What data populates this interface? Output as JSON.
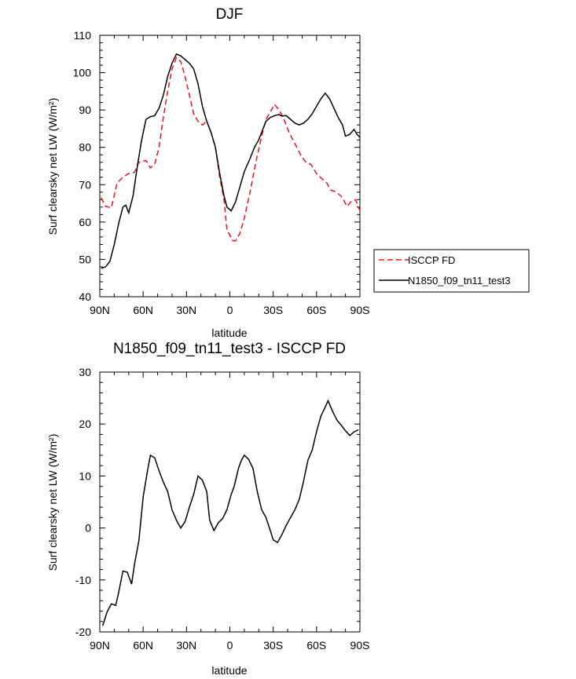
{
  "chart_data": [
    {
      "type": "line",
      "title": "DJF",
      "xlabel": "latitude",
      "ylabel": "Surf clearsky net LW (W/m²)",
      "xlim": [
        90,
        -90
      ],
      "ylim": [
        40,
        110
      ],
      "xticks": [
        90,
        60,
        30,
        0,
        -30,
        -60,
        -90
      ],
      "xtick_labels": [
        "90N",
        "60N",
        "30N",
        "0",
        "30S",
        "60S",
        "90S"
      ],
      "yticks": [
        40,
        50,
        60,
        70,
        80,
        90,
        100,
        110
      ],
      "ytick_labels": [
        "40",
        "50",
        "60",
        "70",
        "80",
        "90",
        "100",
        "110"
      ],
      "legend_position": "right",
      "series": [
        {
          "name": "ISCCP FD",
          "color": "#e8141e",
          "dash": "dashed",
          "points": [
            [
              89,
              66.5
            ],
            [
              86,
              64.2
            ],
            [
              82,
              63.8
            ],
            [
              78,
              70.5
            ],
            [
              74,
              72
            ],
            [
              70,
              73
            ],
            [
              66,
              73.3
            ],
            [
              63,
              76
            ],
            [
              58,
              76.5
            ],
            [
              55,
              74.5
            ],
            [
              52,
              75.5
            ],
            [
              49,
              80
            ],
            [
              46,
              88
            ],
            [
              43,
              95
            ],
            [
              40,
              101
            ],
            [
              37,
              104
            ],
            [
              34,
              103
            ],
            [
              31,
              99
            ],
            [
              28,
              94
            ],
            [
              25,
              89
            ],
            [
              22,
              87
            ],
            [
              19,
              86
            ],
            [
              16,
              87
            ],
            [
              13,
              84
            ],
            [
              10,
              80
            ],
            [
              7,
              72
            ],
            [
              4,
              66
            ],
            [
              2,
              58
            ],
            [
              -2,
              55
            ],
            [
              -4,
              55
            ],
            [
              -7,
              57
            ],
            [
              -10,
              61
            ],
            [
              -14,
              68
            ],
            [
              -18,
              76
            ],
            [
              -22,
              83
            ],
            [
              -25,
              87.5
            ],
            [
              -28,
              89.5
            ],
            [
              -31,
              91.5
            ],
            [
              -34,
              90
            ],
            [
              -37,
              88
            ],
            [
              -41,
              84
            ],
            [
              -45,
              81
            ],
            [
              -49,
              78
            ],
            [
              -53,
              75.8
            ],
            [
              -56,
              75.5
            ],
            [
              -60,
              73
            ],
            [
              -64,
              71.5
            ],
            [
              -67,
              70.5
            ],
            [
              -70,
              68.5
            ],
            [
              -74,
              68
            ],
            [
              -78,
              66.5
            ],
            [
              -81,
              64.2
            ],
            [
              -84,
              65.5
            ],
            [
              -87,
              66
            ],
            [
              -90,
              63
            ]
          ]
        },
        {
          "name": "N1850_f09_tn11_test3",
          "color": "#000000",
          "dash": "solid",
          "points": [
            [
              89,
              47.6
            ],
            [
              86,
              48
            ],
            [
              83,
              49.5
            ],
            [
              80,
              54
            ],
            [
              77,
              59.5
            ],
            [
              74,
              64
            ],
            [
              72,
              64.5
            ],
            [
              70,
              62.5
            ],
            [
              67,
              67
            ],
            [
              64,
              75
            ],
            [
              61,
              82
            ],
            [
              58,
              87.5
            ],
            [
              55,
              88.2
            ],
            [
              52,
              88.5
            ],
            [
              49,
              90.5
            ],
            [
              46,
              94
            ],
            [
              43,
              99
            ],
            [
              40,
              102.5
            ],
            [
              37,
              105
            ],
            [
              34,
              104.5
            ],
            [
              31,
              103.5
            ],
            [
              28,
              102.5
            ],
            [
              25,
              101
            ],
            [
              22,
              97
            ],
            [
              19,
              91
            ],
            [
              16,
              87
            ],
            [
              13,
              84
            ],
            [
              10,
              80
            ],
            [
              7,
              73
            ],
            [
              4,
              67
            ],
            [
              2,
              64
            ],
            [
              -1,
              63
            ],
            [
              -4,
              65.5
            ],
            [
              -7,
              69.5
            ],
            [
              -10,
              73.5
            ],
            [
              -14,
              77
            ],
            [
              -17,
              80
            ],
            [
              -20,
              82
            ],
            [
              -23,
              85
            ],
            [
              -25,
              87
            ],
            [
              -28,
              88
            ],
            [
              -31,
              88.5
            ],
            [
              -34,
              88.8
            ],
            [
              -36,
              88.4
            ],
            [
              -39,
              88.5
            ],
            [
              -42,
              87.5
            ],
            [
              -45,
              86.5
            ],
            [
              -48,
              86
            ],
            [
              -51,
              86.5
            ],
            [
              -54,
              87.5
            ],
            [
              -57,
              89
            ],
            [
              -60,
              91
            ],
            [
              -63,
              93
            ],
            [
              -66,
              94.5
            ],
            [
              -69,
              93
            ],
            [
              -72,
              90.5
            ],
            [
              -75,
              88
            ],
            [
              -78,
              86
            ],
            [
              -80,
              83
            ],
            [
              -83,
              83.5
            ],
            [
              -86,
              84.8
            ],
            [
              -88,
              83.5
            ],
            [
              -90,
              82.7
            ]
          ]
        }
      ]
    },
    {
      "type": "line",
      "title": "N1850_f09_tn11_test3 - ISCCP FD",
      "xlabel": "latitude",
      "ylabel": "Surf clearsky net LW (W/m²)",
      "xlim": [
        90,
        -90
      ],
      "ylim": [
        -20,
        30
      ],
      "xticks": [
        90,
        60,
        30,
        0,
        -30,
        -60,
        -90
      ],
      "xtick_labels": [
        "90N",
        "60N",
        "30N",
        "0",
        "30S",
        "60S",
        "90S"
      ],
      "yticks": [
        -20,
        -10,
        0,
        10,
        20,
        30
      ],
      "ytick_labels": [
        "-20",
        "-10",
        "0",
        "10",
        "20",
        "30"
      ],
      "series": [
        {
          "color": "#000000",
          "dash": "solid",
          "points": [
            [
              88,
              -18.8
            ],
            [
              85,
              -16.2
            ],
            [
              82,
              -14.6
            ],
            [
              79,
              -14.9
            ],
            [
              77,
              -12.5
            ],
            [
              74,
              -8.3
            ],
            [
              71,
              -8.5
            ],
            [
              68,
              -10.8
            ],
            [
              66,
              -7
            ],
            [
              63,
              -2.5
            ],
            [
              60,
              6
            ],
            [
              57,
              11
            ],
            [
              55,
              14
            ],
            [
              52,
              13.5
            ],
            [
              49,
              11
            ],
            [
              46,
              8.8
            ],
            [
              43,
              7
            ],
            [
              40,
              3.5
            ],
            [
              37,
              1.5
            ],
            [
              34,
              0
            ],
            [
              31,
              1.2
            ],
            [
              28,
              4
            ],
            [
              25,
              6.5
            ],
            [
              22,
              10
            ],
            [
              19,
              9.2
            ],
            [
              16,
              7
            ],
            [
              14,
              1.5
            ],
            [
              11,
              -0.5
            ],
            [
              8,
              1
            ],
            [
              5,
              1.8
            ],
            [
              2,
              3.5
            ],
            [
              -1,
              6.5
            ],
            [
              -3,
              8
            ],
            [
              -6,
              11.5
            ],
            [
              -8,
              13
            ],
            [
              -10,
              14
            ],
            [
              -13,
              13.2
            ],
            [
              -16,
              11.5
            ],
            [
              -19,
              7
            ],
            [
              -22,
              3.5
            ],
            [
              -25,
              2
            ],
            [
              -28,
              -0.5
            ],
            [
              -30,
              -2.3
            ],
            [
              -33,
              -2.8
            ],
            [
              -36,
              -1.3
            ],
            [
              -39,
              0.5
            ],
            [
              -42,
              2
            ],
            [
              -45,
              3.5
            ],
            [
              -48,
              5.5
            ],
            [
              -51,
              9
            ],
            [
              -54,
              13
            ],
            [
              -57,
              15
            ],
            [
              -60,
              18.5
            ],
            [
              -63,
              21.5
            ],
            [
              -66,
              23.3
            ],
            [
              -68,
              24.5
            ],
            [
              -71,
              22.5
            ],
            [
              -74,
              20.8
            ],
            [
              -77,
              19.8
            ],
            [
              -80,
              18.7
            ],
            [
              -83,
              17.8
            ],
            [
              -86,
              18.5
            ],
            [
              -89,
              18.9
            ]
          ]
        }
      ]
    }
  ]
}
